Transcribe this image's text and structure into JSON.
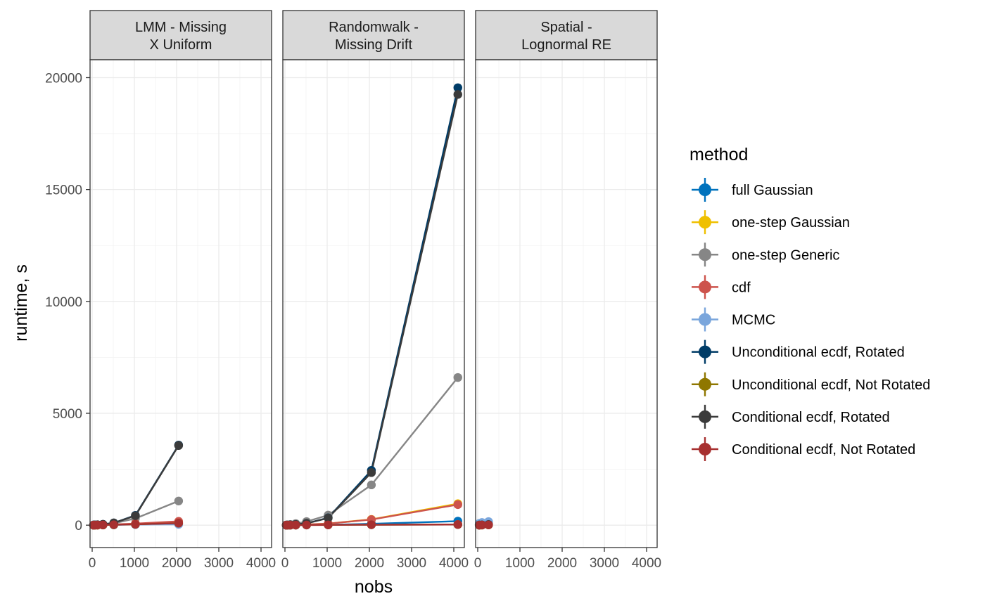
{
  "chart_data": {
    "type": "line",
    "xlabel": "nobs",
    "ylabel": "runtime, s",
    "xlim": [
      -50,
      4250
    ],
    "ylim": [
      -1000,
      20800
    ],
    "xticks": [
      "0",
      "1000",
      "2000",
      "3000",
      "4000"
    ],
    "xtick_values": [
      0,
      1000,
      2000,
      3000,
      4000
    ],
    "yticks": [
      "0",
      "5000",
      "10000",
      "15000",
      "20000"
    ],
    "ytick_values": [
      0,
      5000,
      10000,
      15000,
      20000
    ],
    "grid": true,
    "legend": {
      "title": "method",
      "placement": "right",
      "entries": [
        {
          "name": "full Gaussian",
          "color": "#0072BD"
        },
        {
          "name": "one-step Gaussian",
          "color": "#EFC000"
        },
        {
          "name": "one-step Generic",
          "color": "#868686"
        },
        {
          "name": "cdf",
          "color": "#CD534C"
        },
        {
          "name": "MCMC",
          "color": "#7AA6DC"
        },
        {
          "name": "Unconditional ecdf, Rotated",
          "color": "#003C67"
        },
        {
          "name": "Unconditional ecdf, Not Rotated",
          "color": "#8F7700"
        },
        {
          "name": "Conditional ecdf, Rotated",
          "color": "#3B3B3B"
        },
        {
          "name": "Conditional ecdf, Not Rotated",
          "color": "#A73030"
        }
      ]
    },
    "panels": [
      {
        "strip": [
          "LMM - Missing",
          "X Uniform"
        ],
        "series": [
          {
            "name": "full Gaussian",
            "x": [
              32,
              64,
              128,
              256,
              512,
              1024,
              2048
            ],
            "y": [
              1,
              2,
              4,
              8,
              15,
              30,
              60
            ]
          },
          {
            "name": "one-step Gaussian",
            "x": [
              32,
              64,
              128,
              256,
              512,
              1024,
              2048
            ],
            "y": [
              1,
              2,
              4,
              8,
              20,
              45,
              110
            ]
          },
          {
            "name": "one-step Generic",
            "x": [
              32,
              64,
              128,
              256,
              512,
              1024,
              2048
            ],
            "y": [
              3,
              6,
              12,
              30,
              80,
              300,
              1080
            ]
          },
          {
            "name": "cdf",
            "x": [
              32,
              64,
              128,
              256,
              512,
              1024,
              2048
            ],
            "y": [
              2,
              4,
              8,
              16,
              35,
              70,
              170
            ]
          },
          {
            "name": "MCMC",
            "x": [
              32,
              64,
              128,
              256,
              512,
              1024,
              2048
            ],
            "y": [
              10,
              12,
              15,
              20,
              25,
              30,
              35
            ]
          },
          {
            "name": "Unconditional ecdf, Rotated",
            "x": [
              32,
              64,
              128,
              256,
              512,
              1024,
              2048
            ],
            "y": [
              5,
              10,
              20,
              40,
              100,
              440,
              3580
            ]
          },
          {
            "name": "Unconditional ecdf, Not Rotated",
            "x": [
              32,
              64,
              128,
              256,
              512,
              1024,
              2048
            ],
            "y": [
              2,
              3,
              5,
              10,
              20,
              40,
              90
            ]
          },
          {
            "name": "Conditional ecdf, Rotated",
            "x": [
              32,
              64,
              128,
              256,
              512,
              1024,
              2048
            ],
            "y": [
              5,
              10,
              20,
              40,
              100,
              420,
              3560
            ]
          },
          {
            "name": "Conditional ecdf, Not Rotated",
            "x": [
              32,
              64,
              128,
              256,
              512,
              1024,
              2048
            ],
            "y": [
              2,
              3,
              5,
              10,
              20,
              40,
              90
            ]
          }
        ]
      },
      {
        "strip": [
          "Randomwalk -",
          "Missing Drift"
        ],
        "series": [
          {
            "name": "full Gaussian",
            "x": [
              32,
              64,
              128,
              256,
              512,
              1024,
              2048,
              4096
            ],
            "y": [
              1,
              2,
              3,
              5,
              10,
              20,
              60,
              180
            ]
          },
          {
            "name": "one-step Gaussian",
            "x": [
              32,
              64,
              128,
              256,
              512,
              1024,
              2048,
              4096
            ],
            "y": [
              2,
              4,
              8,
              16,
              30,
              70,
              260,
              960
            ]
          },
          {
            "name": "one-step Generic",
            "x": [
              32,
              64,
              128,
              256,
              512,
              1024,
              2048,
              4096
            ],
            "y": [
              5,
              10,
              30,
              70,
              160,
              450,
              1800,
              6600
            ]
          },
          {
            "name": "cdf",
            "x": [
              32,
              64,
              128,
              256,
              512,
              1024,
              2048,
              4096
            ],
            "y": [
              2,
              4,
              8,
              16,
              30,
              70,
              250,
              920
            ]
          },
          {
            "name": "MCMC",
            "x": [
              32,
              64,
              128,
              256,
              512,
              1024,
              2048,
              4096
            ],
            "y": [
              5,
              6,
              8,
              10,
              12,
              15,
              20,
              30
            ]
          },
          {
            "name": "Unconditional ecdf, Rotated",
            "x": [
              32,
              64,
              128,
              256,
              512,
              1024,
              2048,
              4096
            ],
            "y": [
              3,
              6,
              12,
              30,
              80,
              330,
              2450,
              19550
            ]
          },
          {
            "name": "Unconditional ecdf, Not Rotated",
            "x": [
              32,
              64,
              128,
              256,
              512,
              1024,
              2048,
              4096
            ],
            "y": [
              1,
              2,
              3,
              5,
              8,
              12,
              20,
              30
            ]
          },
          {
            "name": "Conditional ecdf, Rotated",
            "x": [
              32,
              64,
              128,
              256,
              512,
              1024,
              2048,
              4096
            ],
            "y": [
              3,
              6,
              12,
              30,
              80,
              320,
              2350,
              19250
            ]
          },
          {
            "name": "Conditional ecdf, Not Rotated",
            "x": [
              32,
              64,
              128,
              256,
              512,
              1024,
              2048,
              4096
            ],
            "y": [
              1,
              2,
              3,
              5,
              8,
              12,
              20,
              30
            ]
          }
        ]
      },
      {
        "strip": [
          "Spatial -",
          "Lognormal RE"
        ],
        "series": [
          {
            "name": "full Gaussian",
            "x": [
              36,
              100,
              256
            ],
            "y": [
              5,
              10,
              20
            ]
          },
          {
            "name": "one-step Gaussian",
            "x": [
              36,
              100,
              256
            ],
            "y": [
              3,
              6,
              12
            ]
          },
          {
            "name": "one-step Generic",
            "x": [
              36,
              100,
              256
            ],
            "y": [
              8,
              15,
              40
            ]
          },
          {
            "name": "cdf",
            "x": [
              36,
              100,
              256
            ],
            "y": [
              6,
              12,
              30
            ]
          },
          {
            "name": "MCMC",
            "x": [
              36,
              100,
              256
            ],
            "y": [
              80,
              120,
              160
            ]
          },
          {
            "name": "Unconditional ecdf, Rotated",
            "x": [
              36,
              100,
              256
            ],
            "y": [
              5,
              10,
              25
            ]
          },
          {
            "name": "Unconditional ecdf, Not Rotated",
            "x": [
              36,
              100,
              256
            ],
            "y": [
              3,
              6,
              12
            ]
          },
          {
            "name": "Conditional ecdf, Rotated",
            "x": [
              36,
              100,
              256
            ],
            "y": [
              5,
              10,
              25
            ]
          },
          {
            "name": "Conditional ecdf, Not Rotated",
            "x": [
              36,
              100,
              256
            ],
            "y": [
              3,
              6,
              12
            ]
          }
        ]
      }
    ]
  }
}
